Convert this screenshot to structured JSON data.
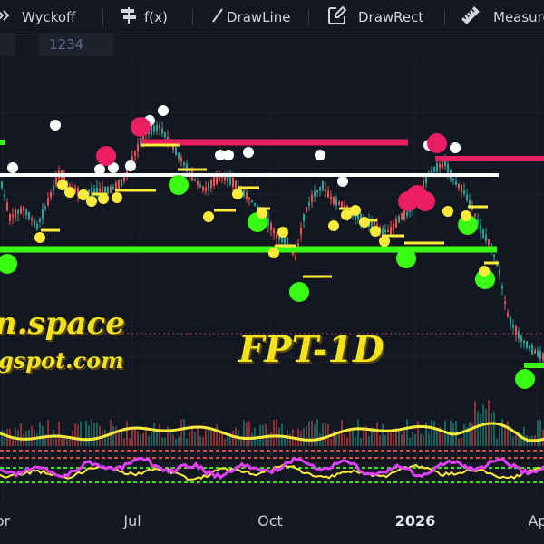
{
  "toolbar": {
    "items": [
      {
        "label": "Wyckoff",
        "icon": "collapse-arrows-icon"
      },
      {
        "label": "f(x)",
        "icon": "signpost-icon"
      },
      {
        "label": "DrawLine",
        "icon": "line-tool-icon"
      },
      {
        "label": "DrawRect",
        "icon": "edit-rectangle-icon"
      },
      {
        "label": "Measure",
        "icon": "ruler-icon"
      }
    ]
  },
  "symbol_bar": {
    "value": "1234"
  },
  "watermark": {
    "site": "n.space",
    "blog": "gspot.com",
    "title": "FPT-1D"
  },
  "chart_data": {
    "type": "candlestick",
    "x_ticks": [
      "or",
      "Jul",
      "Oct",
      "2026",
      "Ap"
    ],
    "year_tick": "2026",
    "colors": {
      "up": "#26a69a",
      "down": "#ef5350",
      "resistance": "#ffffff",
      "supply": "#e91e63",
      "demand": "#39ff14",
      "marker": "#ffeb3b",
      "oscillator_a": "#e040fb",
      "oscillator_b": "#ffeb3b",
      "volume_line": "#ffeb3b"
    },
    "levels": [
      {
        "kind": "resistance",
        "color": "white"
      },
      {
        "kind": "supply",
        "color": "pink"
      },
      {
        "kind": "demand",
        "color": "green"
      }
    ]
  }
}
